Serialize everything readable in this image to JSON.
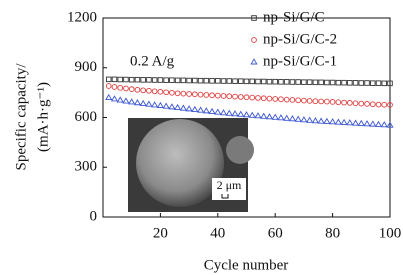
{
  "chart_data": {
    "type": "scatter",
    "xlabel": "Cycle number",
    "ylabel": [
      "Specific capacity/",
      "(mA·h·g⁻¹)"
    ],
    "annotation": "0.2 A/g",
    "inset_label": "2 μm",
    "xlim": [
      0,
      100
    ],
    "xticks": [
      20,
      40,
      60,
      80,
      100
    ],
    "ylim": [
      0,
      1200
    ],
    "yticks": [
      0,
      300,
      600,
      900,
      1200
    ],
    "legend": "upper right",
    "x": [
      2,
      4,
      6,
      8,
      10,
      12,
      14,
      16,
      18,
      20,
      22,
      24,
      26,
      28,
      30,
      32,
      34,
      36,
      38,
      40,
      42,
      44,
      46,
      48,
      50,
      52,
      54,
      56,
      58,
      60,
      62,
      64,
      66,
      68,
      70,
      72,
      74,
      76,
      78,
      80,
      82,
      84,
      86,
      88,
      90,
      92,
      94,
      96,
      98,
      100
    ],
    "series": [
      {
        "name": "np-Si/G/C",
        "color": "#333333",
        "marker": "square",
        "values": [
          830,
          830,
          829,
          829,
          828,
          828,
          827,
          827,
          826,
          826,
          825,
          825,
          824,
          824,
          823,
          823,
          822,
          822,
          821,
          821,
          820,
          820,
          819,
          819,
          818,
          818,
          817,
          817,
          816,
          816,
          815,
          815,
          814,
          814,
          813,
          813,
          812,
          812,
          811,
          811,
          810,
          810,
          809,
          809,
          808,
          808,
          807,
          807,
          806,
          806
        ]
      },
      {
        "name": "np-Si/G/C-2",
        "color": "#e03a3a",
        "marker": "circle",
        "values": [
          790,
          784,
          779,
          775,
          771,
          767,
          764,
          761,
          758,
          755,
          752,
          749,
          746,
          744,
          742,
          740,
          738,
          736,
          734,
          732,
          730,
          728,
          726,
          724,
          722,
          720,
          718,
          716,
          714,
          712,
          710,
          708,
          706,
          704,
          702,
          700,
          698,
          697,
          696,
          694,
          692,
          690,
          688,
          686,
          684,
          682,
          680,
          678,
          677,
          676
        ]
      },
      {
        "name": "np-Si/G/C-1",
        "color": "#3a55d0",
        "marker": "triangle",
        "values": [
          720,
          712,
          705,
          699,
          694,
          689,
          684,
          680,
          676,
          672,
          668,
          664,
          660,
          656,
          652,
          648,
          644,
          640,
          636,
          632,
          628,
          625,
          622,
          619,
          616,
          613,
          610,
          607,
          604,
          601,
          598,
          595,
          592,
          589,
          586,
          583,
          580,
          578,
          576,
          574,
          572,
          570,
          568,
          566,
          564,
          562,
          560,
          558,
          556,
          554
        ]
      }
    ]
  }
}
